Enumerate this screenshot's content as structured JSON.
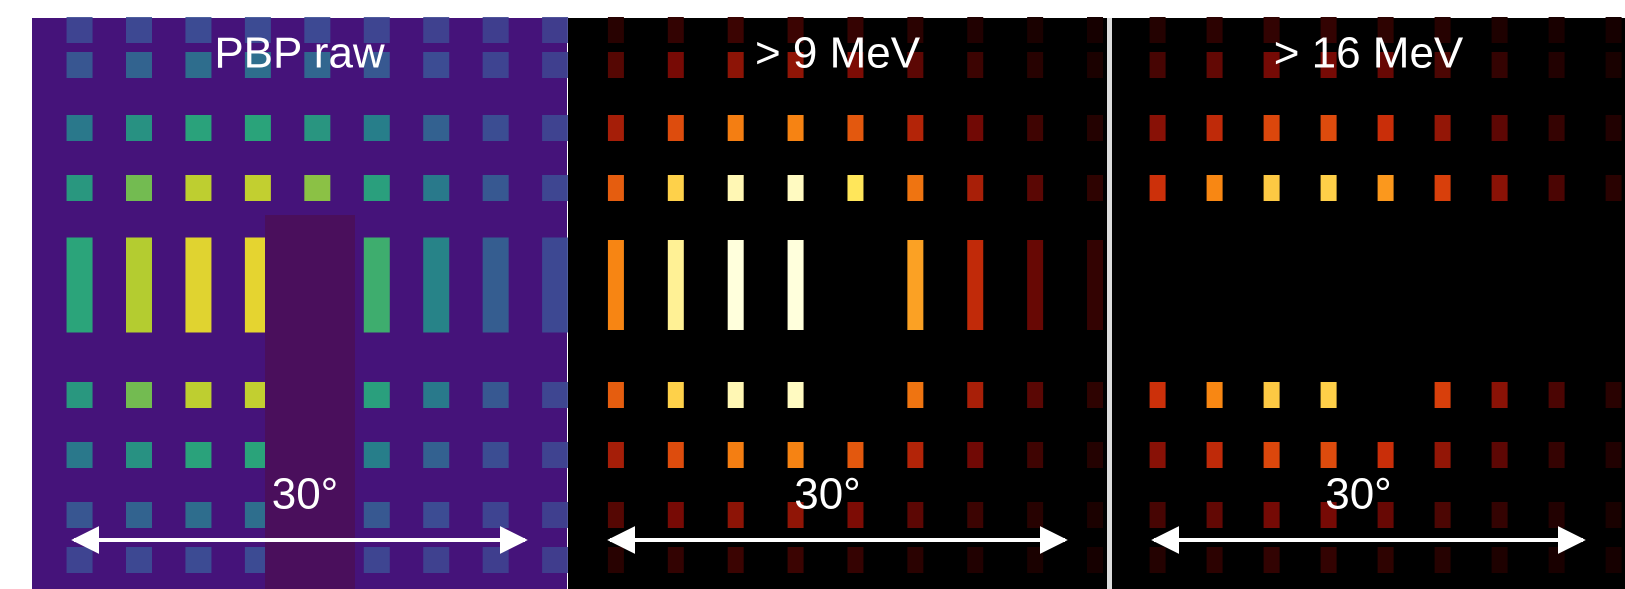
{
  "panels": [
    {
      "label": "PBP raw",
      "scale_label": "30°"
    },
    {
      "label": "> 9 MeV",
      "scale_label": "30°"
    },
    {
      "label": "> 16 MeV",
      "scale_label": "30°"
    }
  ]
}
